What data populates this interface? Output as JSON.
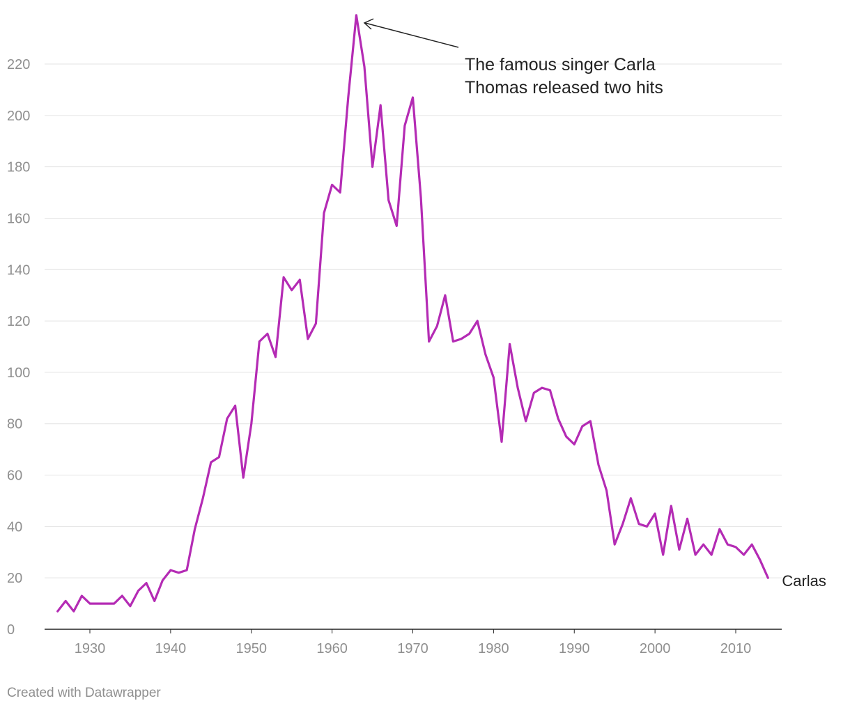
{
  "chart_data": {
    "type": "line",
    "title": "",
    "xlabel": "",
    "ylabel": "",
    "xlim": [
      1925,
      2016
    ],
    "ylim": [
      0,
      240
    ],
    "x_ticks": [
      1930,
      1940,
      1950,
      1960,
      1970,
      1980,
      1990,
      2000,
      2010
    ],
    "y_ticks": [
      0,
      20,
      40,
      60,
      80,
      100,
      120,
      140,
      160,
      180,
      200,
      220
    ],
    "grid": true,
    "line_color": "#b42bb4",
    "series": [
      {
        "name": "Carlas",
        "x": [
          1926,
          1927,
          1928,
          1929,
          1930,
          1931,
          1932,
          1933,
          1934,
          1935,
          1936,
          1937,
          1938,
          1939,
          1940,
          1941,
          1942,
          1943,
          1944,
          1945,
          1946,
          1947,
          1948,
          1949,
          1950,
          1951,
          1952,
          1953,
          1954,
          1955,
          1956,
          1957,
          1958,
          1959,
          1960,
          1961,
          1962,
          1963,
          1964,
          1965,
          1966,
          1967,
          1968,
          1969,
          1970,
          1971,
          1972,
          1973,
          1974,
          1975,
          1976,
          1977,
          1978,
          1979,
          1980,
          1981,
          1982,
          1983,
          1984,
          1985,
          1986,
          1987,
          1988,
          1989,
          1990,
          1991,
          1992,
          1993,
          1994,
          1995,
          1996,
          1997,
          1998,
          1999,
          2000,
          2001,
          2002,
          2003,
          2004,
          2005,
          2006,
          2007,
          2008,
          2009,
          2010,
          2011,
          2012,
          2013,
          2014
        ],
        "values": [
          7,
          11,
          7,
          13,
          10,
          10,
          10,
          10,
          13,
          9,
          15,
          18,
          11,
          19,
          23,
          22,
          23,
          39,
          51,
          65,
          67,
          82,
          87,
          59,
          80,
          112,
          115,
          106,
          137,
          132,
          136,
          113,
          119,
          162,
          173,
          170,
          207,
          239,
          219,
          180,
          204,
          167,
          157,
          196,
          207,
          168,
          112,
          118,
          130,
          112,
          113,
          115,
          120,
          107,
          98,
          73,
          111,
          94,
          81,
          92,
          94,
          93,
          82,
          75,
          72,
          79,
          81,
          64,
          54,
          33,
          41,
          51,
          41,
          40,
          45,
          29,
          48,
          31,
          43,
          29,
          33,
          29,
          39,
          33,
          32,
          29,
          33,
          27,
          20
        ]
      }
    ],
    "annotation": {
      "line1": "The famous singer Carla",
      "line2": "Thomas released two hits",
      "x": 1963,
      "y": 239
    }
  },
  "credit": "Created with Datawrapper"
}
